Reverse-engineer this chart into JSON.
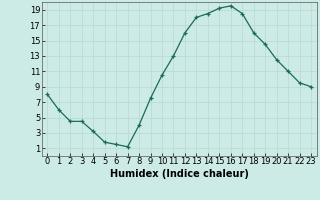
{
  "x": [
    0,
    1,
    2,
    3,
    4,
    5,
    6,
    7,
    8,
    9,
    10,
    11,
    12,
    13,
    14,
    15,
    16,
    17,
    18,
    19,
    20,
    21,
    22,
    23
  ],
  "y": [
    8,
    6,
    4.5,
    4.5,
    3.2,
    1.8,
    1.5,
    1.2,
    4,
    7.5,
    10.5,
    13,
    16,
    18,
    18.5,
    19.2,
    19.5,
    18.5,
    16,
    14.5,
    12.5,
    11,
    9.5,
    9
  ],
  "xlabel": "Humidex (Indice chaleur)",
  "xlim": [
    -0.5,
    23.5
  ],
  "ylim": [
    0,
    20
  ],
  "yticks": [
    1,
    3,
    5,
    7,
    9,
    11,
    13,
    15,
    17,
    19
  ],
  "xticks": [
    0,
    1,
    2,
    3,
    4,
    5,
    6,
    7,
    8,
    9,
    10,
    11,
    12,
    13,
    14,
    15,
    16,
    17,
    18,
    19,
    20,
    21,
    22,
    23
  ],
  "line_color": "#1a6b5a",
  "marker": "+",
  "bg_color": "#cceae6",
  "grid_color": "#b8d8d4",
  "tick_fontsize": 6.0,
  "xlabel_fontsize": 7.0
}
